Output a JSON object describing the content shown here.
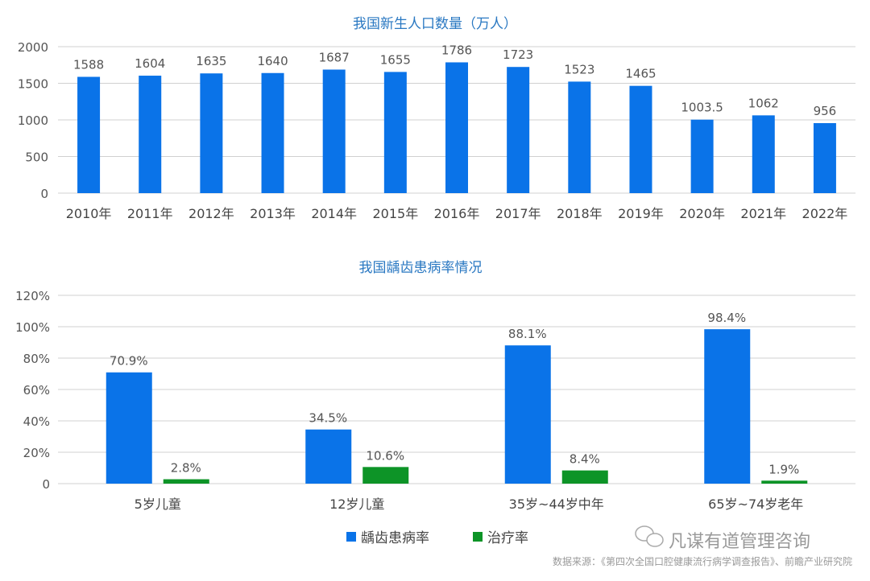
{
  "chart_data": [
    {
      "type": "bar",
      "title": "我国新生人口数量（万人）",
      "categories": [
        "2010年",
        "2011年",
        "2012年",
        "2013年",
        "2014年",
        "2015年",
        "2016年",
        "2017年",
        "2018年",
        "2019年",
        "2020年",
        "2021年",
        "2022年"
      ],
      "values": [
        1588,
        1604,
        1635,
        1640,
        1687,
        1655,
        1786,
        1723,
        1523,
        1465,
        1003.5,
        1062,
        956
      ],
      "data_labels": [
        "1588",
        "1604",
        "1635",
        "1640",
        "1687",
        "1655",
        "1786",
        "1723",
        "1523",
        "1465",
        "1003.5",
        "1062",
        "956"
      ],
      "yticks": [
        "0",
        "500",
        "1000",
        "1500",
        "2000"
      ],
      "ylim": [
        0,
        2000
      ],
      "grid": true,
      "color": "#0a73e8"
    },
    {
      "type": "bar",
      "title": "我国龋齿患病率情况",
      "categories": [
        "5岁儿童",
        "12岁儿童",
        "35岁~44岁中年",
        "65岁~74岁老年"
      ],
      "series": [
        {
          "name": "龋齿患病率",
          "values": [
            70.9,
            34.5,
            88.1,
            98.4
          ],
          "labels": [
            "70.9%",
            "34.5%",
            "88.1%",
            "98.4%"
          ],
          "color": "#0a73e8"
        },
        {
          "name": "治疗率",
          "values": [
            2.8,
            10.6,
            8.4,
            1.9
          ],
          "labels": [
            "2.8%",
            "10.6%",
            "8.4%",
            "1.9%"
          ],
          "color": "#0d9427"
        }
      ],
      "yticks": [
        "0",
        "20%",
        "40%",
        "60%",
        "80%",
        "100%",
        "120%"
      ],
      "ylim": [
        0,
        120
      ],
      "grid": true,
      "legend": "bottom"
    }
  ],
  "source": "数据来源：《第四次全国口腔健康流行病学调查报告》、前瞻产业研究院",
  "watermark": "凡谋有道管理咨询"
}
